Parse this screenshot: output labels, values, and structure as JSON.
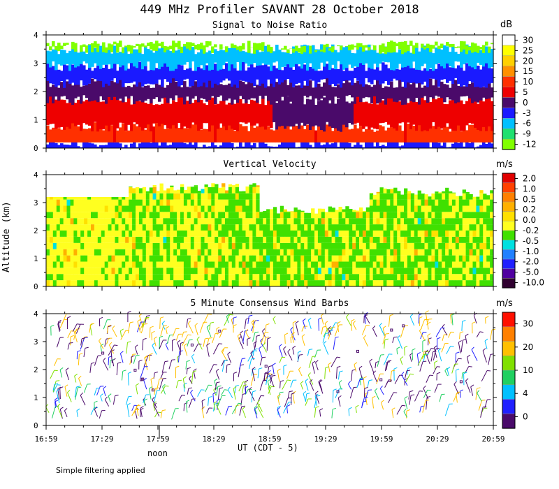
{
  "header": {
    "title": "449 MHz Profiler SAVANT 28 October 2018"
  },
  "axes": {
    "ylabel": "Altitude (km)",
    "xlabel": "UT  (CDT - 5)",
    "noon_label": "noon",
    "footer": "Simple filtering applied"
  },
  "chart_data": [
    {
      "type": "heatmap",
      "title": "Signal to Noise Ratio",
      "ylabel": "Altitude (km)",
      "xlabel": "UT  (CDT - 5)",
      "ylim": [
        0,
        4
      ],
      "yticks": [
        "0",
        "1",
        "2",
        "3",
        "4"
      ],
      "xticks": [
        "16:59",
        "17:29",
        "17:59",
        "18:29",
        "18:59",
        "19:29",
        "19:59",
        "20:29",
        "20:59"
      ],
      "colorbar": {
        "unit": "dB",
        "labels": [
          "30",
          "25",
          "20",
          "15",
          "10",
          "5",
          "0",
          "-3",
          "-6",
          "-9",
          "-12"
        ],
        "colors": [
          "#ffffff",
          "#ffff00",
          "#ffd000",
          "#ff9000",
          "#ff3000",
          "#ee0000",
          "#4a0a6a",
          "#1a1aff",
          "#00c0ff",
          "#20e070",
          "#80ff00"
        ]
      },
      "profile": [
        {
          "alt_km": 0.0,
          "value": "-3"
        },
        {
          "alt_km": 0.2,
          "value": "10"
        },
        {
          "alt_km": 0.75,
          "value": "5"
        },
        {
          "alt_km": 1.7,
          "value": "0"
        },
        {
          "alt_km": 2.3,
          "value": "-3"
        },
        {
          "alt_km": 2.9,
          "value": "-6"
        },
        {
          "alt_km": 3.5,
          "value": "-12"
        }
      ]
    },
    {
      "type": "heatmap",
      "title": "Vertical Velocity",
      "ylim": [
        0,
        4
      ],
      "yticks": [
        "0",
        "1",
        "2",
        "3",
        "4"
      ],
      "xticks": [
        "16:59",
        "17:29",
        "17:59",
        "18:29",
        "18:59",
        "19:29",
        "19:59",
        "20:29",
        "20:59"
      ],
      "colorbar": {
        "unit": "m/s",
        "labels": [
          "2.0",
          "1.0",
          "0.5",
          "0.2",
          "0.0",
          "-0.2",
          "-0.5",
          "-1.0",
          "-2.0",
          "-5.0",
          "-10.0"
        ],
        "colors": [
          "#e00000",
          "#ff4000",
          "#ff8000",
          "#ffb000",
          "#ffe000",
          "#ffff20",
          "#40e000",
          "#00e0e0",
          "#2080ff",
          "#2020ff",
          "#5000a0",
          "#300030"
        ]
      },
      "dominant_values": [
        "0.0",
        "-0.2"
      ]
    },
    {
      "type": "scatter",
      "title": "5 Minute Consensus Wind Barbs",
      "ylim": [
        0,
        4
      ],
      "yticks": [
        "0",
        "1",
        "2",
        "3",
        "4"
      ],
      "xticks": [
        "16:59",
        "17:29",
        "17:59",
        "18:29",
        "18:59",
        "19:29",
        "19:59",
        "20:29",
        "20:59"
      ],
      "colorbar": {
        "unit": "m/s",
        "labels": [
          "30",
          "20",
          "10",
          "4",
          "0"
        ],
        "colors": [
          "#ff1000",
          "#ff8000",
          "#ffc000",
          "#80e000",
          "#20d060",
          "#00c0ff",
          "#2020ff",
          "#4a0a6a"
        ]
      },
      "x_range": [
        "16:59",
        "20:59"
      ],
      "alt_range_km": [
        0,
        4
      ],
      "speeds_ms": [
        0,
        4,
        10,
        20
      ]
    }
  ]
}
